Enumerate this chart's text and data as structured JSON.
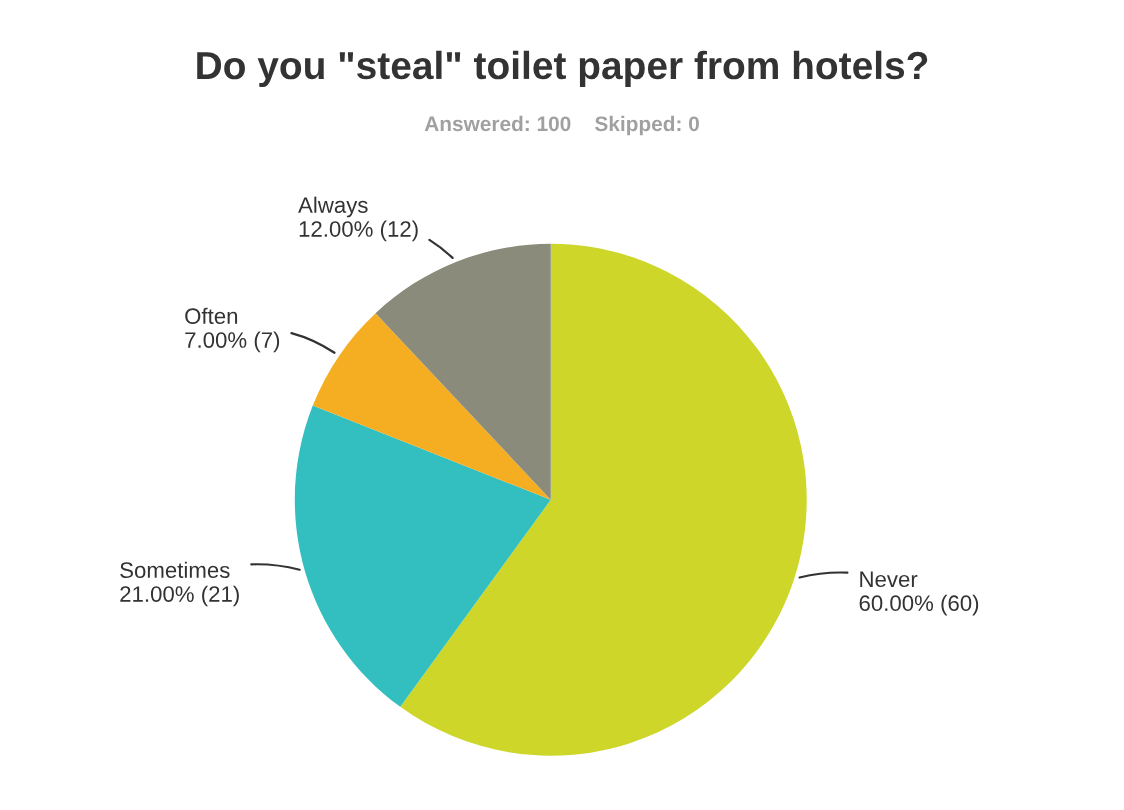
{
  "chart_data": {
    "type": "pie",
    "title": "Do you \"steal\" toilet paper from hotels?",
    "subtitle": "Answered: 100    Skipped: 0",
    "categories": [
      "Never",
      "Sometimes",
      "Often",
      "Always"
    ],
    "values": [
      60,
      21,
      7,
      12
    ],
    "value_labels": [
      "60.00% (60)",
      "21.00% (21)",
      "7.00% (7)",
      "12.00% (12)"
    ],
    "colors": [
      "#cdd629",
      "#33bfbf",
      "#f5ae22",
      "#8b8b7b"
    ]
  }
}
